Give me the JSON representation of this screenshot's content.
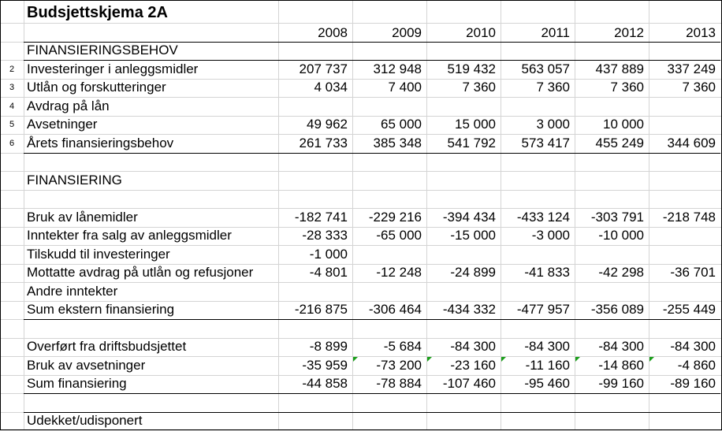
{
  "title": "Budsjettskjema 2A",
  "years": [
    "2008",
    "2009",
    "2010",
    "2011",
    "2012",
    "2013"
  ],
  "rows": [
    {
      "num": "",
      "label": "FINANSIERINGSBEHOV",
      "values": [
        "",
        "",
        "",
        "",
        "",
        ""
      ]
    },
    {
      "num": "2",
      "label": "Investeringer i anleggsmidler",
      "values": [
        "207 737",
        "312 948",
        "519 432",
        "563 057",
        "437 889",
        "337 249"
      ]
    },
    {
      "num": "3",
      "label": "Utlån og forskutteringer",
      "values": [
        "4 034",
        "7 400",
        "7 360",
        "7 360",
        "7 360",
        "7 360"
      ]
    },
    {
      "num": "4",
      "label": "Avdrag på lån",
      "values": [
        "",
        "",
        "",
        "",
        "",
        ""
      ]
    },
    {
      "num": "5",
      "label": "Avsetninger",
      "values": [
        "49 962",
        "65 000",
        "15 000",
        "3 000",
        "10 000",
        ""
      ]
    },
    {
      "num": "6",
      "label": "Årets finansieringsbehov",
      "values": [
        "261 733",
        "385 348",
        "541 792",
        "573 417",
        "455 249",
        "344 609"
      ]
    },
    {
      "num": "",
      "label": "",
      "values": [
        "",
        "",
        "",
        "",
        "",
        ""
      ]
    },
    {
      "num": "",
      "label": "FINANSIERING",
      "values": [
        "",
        "",
        "",
        "",
        "",
        ""
      ]
    },
    {
      "num": "",
      "label": "",
      "values": [
        "",
        "",
        "",
        "",
        "",
        ""
      ]
    },
    {
      "num": "",
      "label": "Bruk av lånemidler",
      "values": [
        "-182 741",
        "-229 216",
        "-394 434",
        "-433 124",
        "-303 791",
        "-218 748"
      ]
    },
    {
      "num": "",
      "label": "Inntekter fra salg av anleggsmidler",
      "values": [
        "-28 333",
        "-65 000",
        "-15 000",
        "-3 000",
        "-10 000",
        ""
      ]
    },
    {
      "num": "",
      "label": "Tilskudd til investeringer",
      "values": [
        "-1 000",
        "",
        "",
        "",
        "",
        ""
      ]
    },
    {
      "num": "",
      "label": "Mottatte avdrag på utlån og refusjoner",
      "values": [
        "-4 801",
        "-12 248",
        "-24 899",
        "-41 833",
        "-42 298",
        "-36 701"
      ]
    },
    {
      "num": "",
      "label": "Andre inntekter",
      "values": [
        "",
        "",
        "",
        "",
        "",
        ""
      ]
    },
    {
      "num": "",
      "label": "Sum ekstern finansiering",
      "values": [
        "-216 875",
        "-306 464",
        "-434 332",
        "-477 957",
        "-356 089",
        "-255 449"
      ]
    },
    {
      "num": "",
      "label": "",
      "values": [
        "",
        "",
        "",
        "",
        "",
        ""
      ]
    },
    {
      "num": "",
      "label": "Overført fra driftsbudsjettet",
      "values": [
        "-8 899",
        "-5 684",
        "-84 300",
        "-84 300",
        "-84 300",
        "-84 300"
      ]
    },
    {
      "num": "",
      "label": "Bruk av avsetninger",
      "values": [
        "-35 959",
        "-73 200",
        "-23 160",
        "-11 160",
        "-14 860",
        "-4 860"
      ]
    },
    {
      "num": "",
      "label": "Sum finansiering",
      "values": [
        "-44 858",
        "-78 884",
        "-107 460",
        "-95 460",
        "-99 160",
        "-89 160"
      ]
    },
    {
      "num": "",
      "label": "",
      "values": [
        "",
        "",
        "",
        "",
        "",
        ""
      ]
    },
    {
      "num": "",
      "label": "Udekket/udisponert",
      "values": [
        "",
        "",
        "",
        "",
        "",
        ""
      ]
    }
  ],
  "colors": {
    "grid": "#d4d4d4",
    "border": "#000000",
    "error_marker": "#1a9e1a"
  }
}
